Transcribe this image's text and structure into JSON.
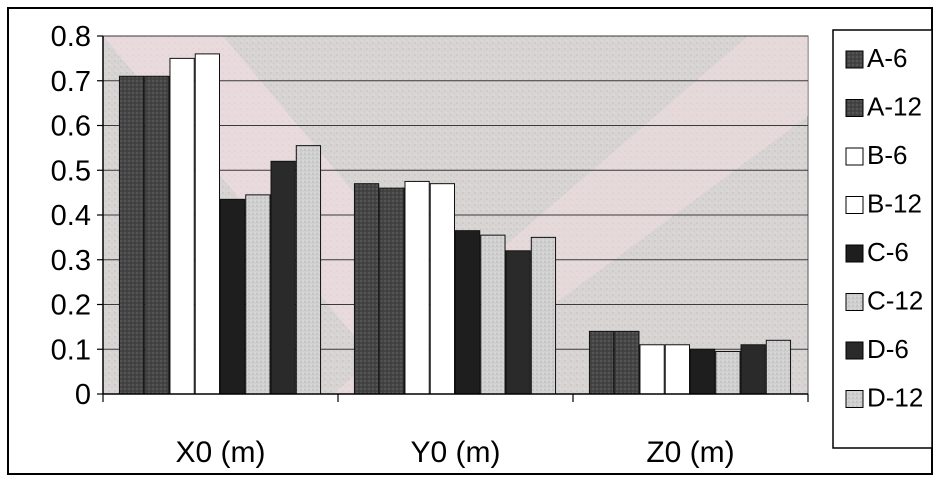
{
  "chart_data": {
    "type": "bar",
    "title": "",
    "xlabel": "",
    "ylabel": "",
    "categories": [
      "X0 (m)",
      "Y0 (m)",
      "Z0 (m)"
    ],
    "ylim": [
      0,
      0.8
    ],
    "yticks": [
      0,
      0.1,
      0.2,
      0.3,
      0.4,
      0.5,
      0.6,
      0.7,
      0.8
    ],
    "ytick_labels": [
      "0",
      "0.1",
      "0.2",
      "0.3",
      "0.4",
      "0.5",
      "0.6",
      "0.7",
      "0.8"
    ],
    "grid": true,
    "legend_position": "right",
    "series": [
      {
        "name": "A-6",
        "values": [
          0.71,
          0.47,
          0.14
        ],
        "color": "#4a4a4a"
      },
      {
        "name": "A-12",
        "values": [
          0.71,
          0.46,
          0.14
        ],
        "color": "#3a3a3a"
      },
      {
        "name": "B-6",
        "values": [
          0.75,
          0.475,
          0.11
        ],
        "color": "#ffffff"
      },
      {
        "name": "B-12",
        "values": [
          0.76,
          0.47,
          0.11
        ],
        "color": "#ffffff"
      },
      {
        "name": "C-6",
        "values": [
          0.435,
          0.365,
          0.1
        ],
        "color": "#1e1e1e"
      },
      {
        "name": "C-12",
        "values": [
          0.445,
          0.355,
          0.095
        ],
        "color": "#c8c8c8"
      },
      {
        "name": "D-6",
        "values": [
          0.52,
          0.32,
          0.11
        ],
        "color": "#2a2a2a"
      },
      {
        "name": "D-12",
        "values": [
          0.555,
          0.35,
          0.12
        ],
        "color": "#d8d8d8"
      }
    ],
    "plot_background": "#d9d4d4",
    "accent_pink": "#f6dfe3"
  }
}
